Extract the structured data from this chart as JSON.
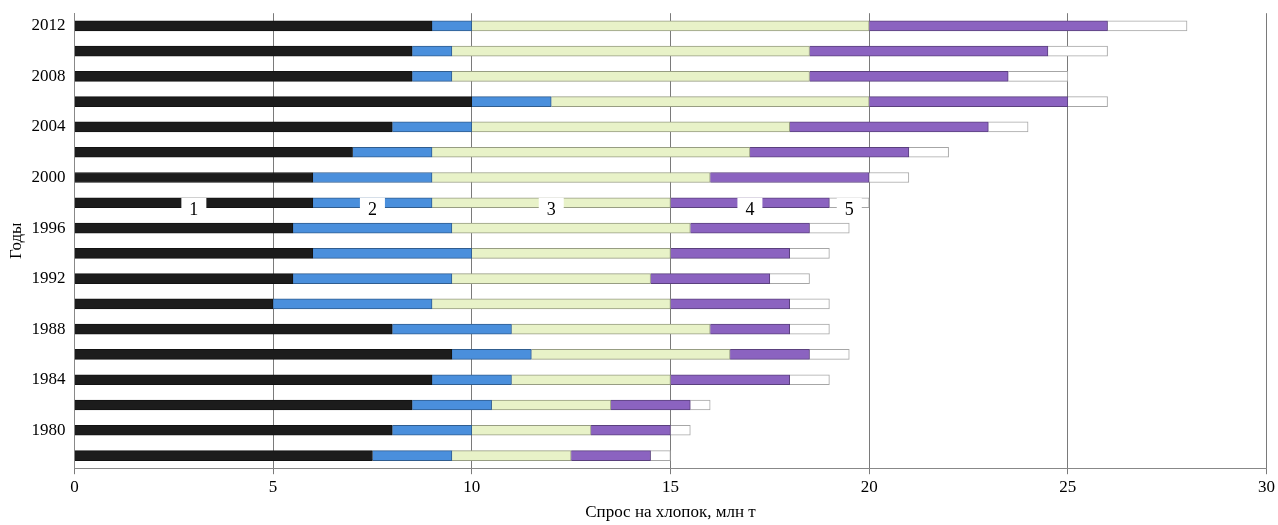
{
  "chart_data": {
    "type": "bar",
    "orientation": "horizontal",
    "stacked": true,
    "xlabel": "Спрос на хлопок, млн т",
    "ylabel": "Годы",
    "categories": [
      "2012",
      null,
      "2008",
      null,
      "2004",
      null,
      "2000",
      null,
      "1996",
      null,
      "1992",
      null,
      "1988",
      null,
      "1984",
      null,
      "1980",
      null
    ],
    "series": [
      {
        "name": "1",
        "color": "#1c1c1c",
        "values": [
          9,
          8.5,
          8.5,
          10,
          8,
          7,
          6,
          6,
          5.5,
          6,
          5.5,
          5,
          8,
          9.5,
          9,
          8.5,
          8,
          7.5
        ]
      },
      {
        "name": "2",
        "color": "#4a8fdc",
        "values": [
          1,
          1,
          1,
          2,
          2,
          2,
          3,
          3,
          4,
          4,
          4,
          4,
          3,
          2,
          2,
          2,
          2,
          2
        ]
      },
      {
        "name": "3",
        "color": "#e8f2c8",
        "values": [
          10,
          9,
          9,
          8,
          8,
          8,
          7,
          6,
          6,
          5,
          5,
          6,
          5,
          5,
          4,
          3,
          3,
          3
        ]
      },
      {
        "name": "4",
        "color": "#8b63c0",
        "values": [
          6,
          6,
          5,
          5,
          5,
          4,
          4,
          4,
          3,
          3,
          3,
          3,
          2,
          2,
          3,
          2,
          2,
          2
        ]
      },
      {
        "name": "5",
        "color": "#ffffff",
        "values": [
          2,
          1.5,
          1.5,
          1,
          1,
          1,
          1,
          1,
          1,
          1,
          1,
          1,
          1,
          1,
          1,
          0.5,
          0.5,
          0.5
        ]
      }
    ],
    "xlim": [
      0,
      30
    ],
    "xticks": [
      0,
      5,
      10,
      15,
      20,
      25,
      30
    ],
    "grid": "x",
    "legend": false
  }
}
